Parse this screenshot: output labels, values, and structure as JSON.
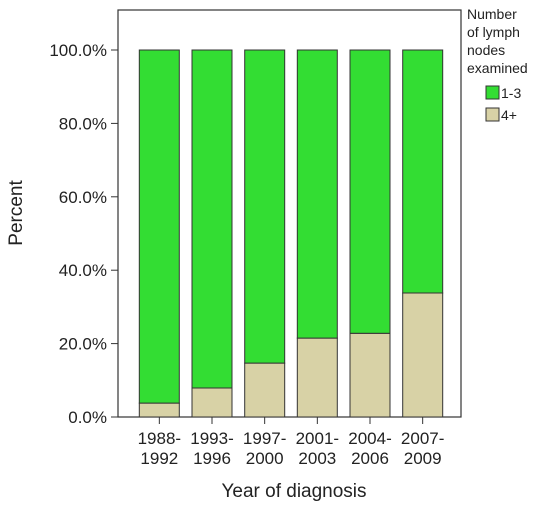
{
  "chart_data": {
    "type": "bar",
    "stacked": true,
    "normalized": true,
    "categories": [
      [
        "1988-",
        "1992"
      ],
      [
        "1993-",
        "1996"
      ],
      [
        "1997-",
        "2000"
      ],
      [
        "2001-",
        "2003"
      ],
      [
        "2004-",
        "2006"
      ],
      [
        "2007-",
        "2009"
      ]
    ],
    "series": [
      {
        "name": "1-3",
        "color": "#33dd33",
        "values": [
          96.2,
          92.1,
          85.3,
          78.5,
          77.2,
          66.2
        ]
      },
      {
        "name": "4+",
        "color": "#d8d2a6",
        "values": [
          3.8,
          7.9,
          14.7,
          21.5,
          22.8,
          33.8
        ]
      }
    ],
    "xlabel": "Year of diagnosis",
    "ylabel": "Percent",
    "ylim": [
      0,
      100
    ],
    "yticks": [
      "0.0%",
      "20.0%",
      "40.0%",
      "60.0%",
      "80.0%",
      "100.0%"
    ],
    "grid": false,
    "legend": {
      "title": [
        "Number",
        "of lymph",
        "nodes",
        "examined"
      ],
      "placement": "top-right"
    }
  }
}
